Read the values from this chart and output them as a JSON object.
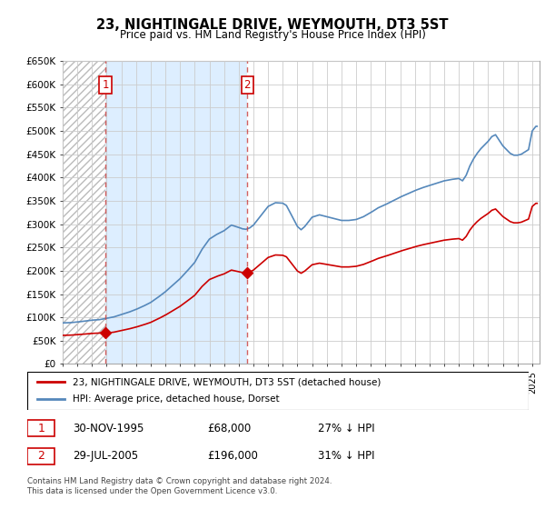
{
  "title": "23, NIGHTINGALE DRIVE, WEYMOUTH, DT3 5ST",
  "subtitle": "Price paid vs. HM Land Registry's House Price Index (HPI)",
  "legend_line1": "23, NIGHTINGALE DRIVE, WEYMOUTH, DT3 5ST (detached house)",
  "legend_line2": "HPI: Average price, detached house, Dorset",
  "transaction1_date": "30-NOV-1995",
  "transaction1_price": "£68,000",
  "transaction1_hpi": "27% ↓ HPI",
  "transaction2_date": "29-JUL-2005",
  "transaction2_price": "£196,000",
  "transaction2_hpi": "31% ↓ HPI",
  "footnote": "Contains HM Land Registry data © Crown copyright and database right 2024.\nThis data is licensed under the Open Government Licence v3.0.",
  "line_color_property": "#cc0000",
  "line_color_hpi": "#5588bb",
  "fill_between_color": "#ddeeff",
  "hatch_color": "#cccccc",
  "grid_color": "#cccccc",
  "ylim": [
    0,
    650000
  ],
  "ytick_values": [
    0,
    50000,
    100000,
    150000,
    200000,
    250000,
    300000,
    350000,
    400000,
    450000,
    500000,
    550000,
    600000,
    650000
  ],
  "sale1_year": 1995.917,
  "sale1_value": 68000,
  "sale2_year": 2005.581,
  "sale2_value": 196000,
  "xmin": 1993.0,
  "xmax": 2025.5
}
